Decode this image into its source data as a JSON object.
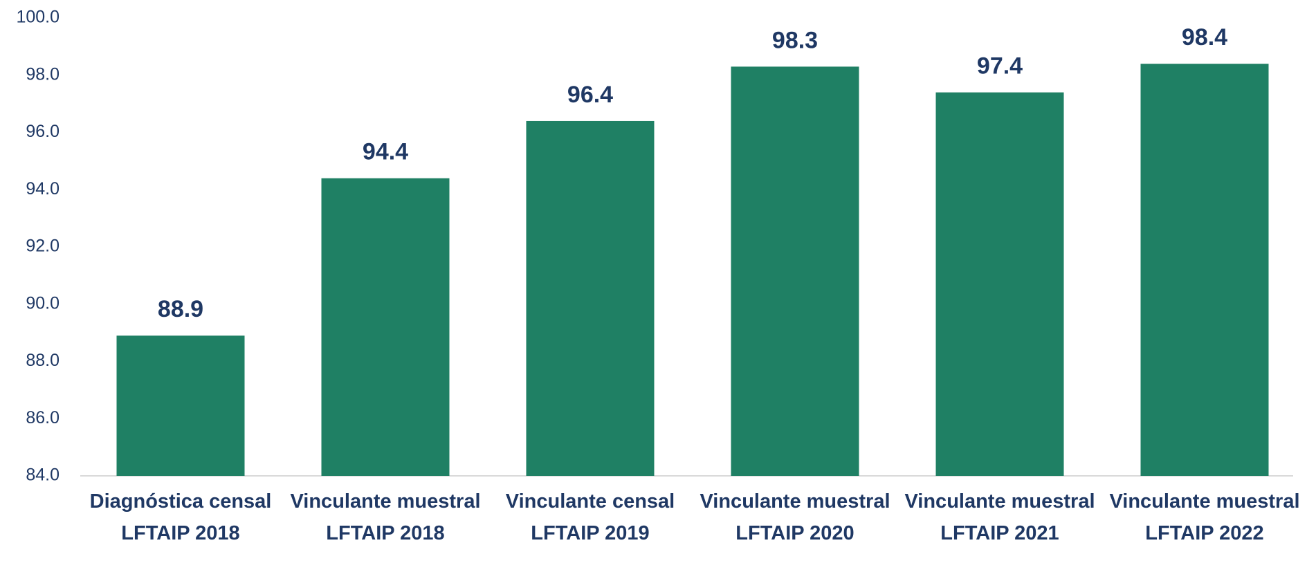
{
  "chart_data": {
    "type": "bar",
    "categories": [
      "Diagnóstica censal LFTAIP 2018",
      "Vinculante muestral LFTAIP 2018",
      "Vinculante censal LFTAIP 2019",
      "Vinculante muestral LFTAIP 2020",
      "Vinculante muestral LFTAIP 2021",
      "Vinculante muestral LFTAIP 2022"
    ],
    "values": [
      88.9,
      94.4,
      96.4,
      98.3,
      97.4,
      98.4
    ],
    "color": "#1f8064",
    "ylim": [
      84,
      100
    ],
    "yticks": [
      {
        "value": 84,
        "label": "84.0"
      },
      {
        "value": 86,
        "label": "86.0"
      },
      {
        "value": 88,
        "label": "88.0"
      },
      {
        "value": 90,
        "label": "90.0"
      },
      {
        "value": 92,
        "label": "92.0"
      },
      {
        "value": 94,
        "label": "94.0"
      },
      {
        "value": 96,
        "label": "96.0"
      },
      {
        "value": 98,
        "label": "98.0"
      },
      {
        "value": 100,
        "label": "100.0"
      }
    ],
    "grid": false
  }
}
